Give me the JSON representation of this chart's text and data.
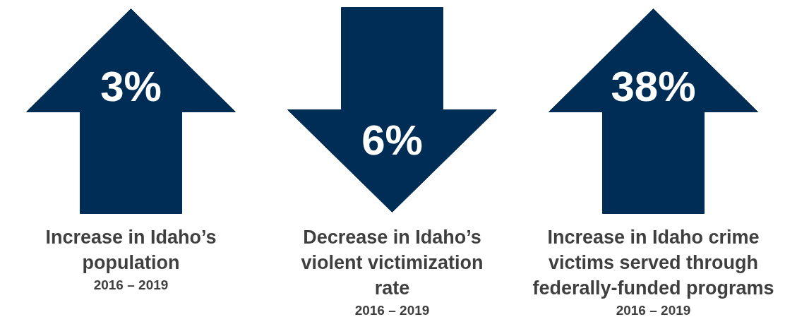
{
  "chart_data": [
    {
      "type": "other",
      "title": "Increase in Idaho’s population",
      "subtitle": "2016 – 2019",
      "values": [
        3
      ],
      "value_labels": [
        "3%"
      ],
      "color": "#002d56"
    },
    {
      "type": "other",
      "title": "Decrease in Idaho’s violent victimization rate",
      "subtitle": "2016 – 2019",
      "values": [
        6
      ],
      "value_labels": [
        "6%"
      ],
      "color": "#002d56"
    },
    {
      "type": "other",
      "title": "Increase in Idaho crime victims served through federally-funded programs",
      "subtitle": "2016 – 2019",
      "values": [
        38
      ],
      "value_labels": [
        "38%"
      ],
      "color": "#002d56"
    }
  ]
}
